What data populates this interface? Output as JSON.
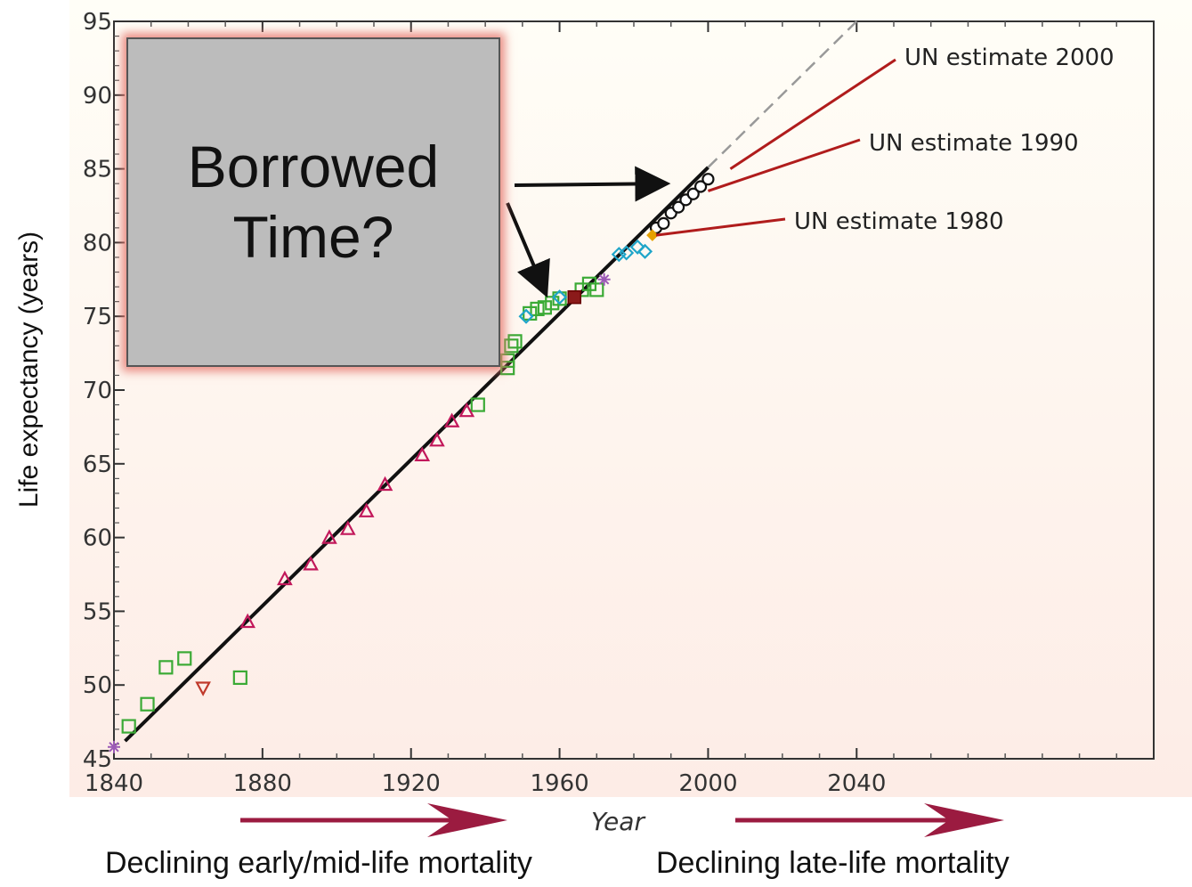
{
  "chart_data": {
    "type": "scatter",
    "xlabel": "Year",
    "ylabel": "Life expectancy (years)",
    "xlim": [
      1840,
      2120
    ],
    "ylim": [
      45,
      95
    ],
    "x_ticks": [
      1840,
      1880,
      1920,
      1960,
      2000,
      2040
    ],
    "x_tick_labels": [
      "1840",
      "1880",
      "1920",
      "1960",
      "2000",
      "2040"
    ],
    "y_ticks": [
      45,
      50,
      55,
      60,
      65,
      70,
      75,
      80,
      85,
      90,
      95
    ],
    "y_tick_labels": [
      "45",
      "50",
      "55",
      "60",
      "65",
      "70",
      "75",
      "80",
      "85",
      "90",
      "95"
    ],
    "trend_line": {
      "x": [
        1843,
        2000
      ],
      "y": [
        46.2,
        85.1
      ]
    },
    "trend_extension": {
      "x": [
        2000,
        2040
      ],
      "y": [
        85.1,
        95
      ]
    },
    "series": [
      {
        "marker": "square",
        "color": "#3aaa35",
        "points": [
          [
            1844,
            47.2
          ],
          [
            1849,
            48.7
          ],
          [
            1854,
            51.2
          ],
          [
            1859,
            51.8
          ],
          [
            1874,
            50.5
          ],
          [
            1938,
            69.0
          ],
          [
            1946,
            71.5
          ],
          [
            1946,
            72.0
          ],
          [
            1947,
            73.0
          ],
          [
            1948,
            73.3
          ],
          [
            1952,
            75.2
          ],
          [
            1954,
            75.5
          ],
          [
            1956,
            75.6
          ],
          [
            1958,
            75.9
          ],
          [
            1960,
            76.2
          ],
          [
            1966,
            76.8
          ],
          [
            1968,
            77.2
          ],
          [
            1970,
            76.8
          ]
        ]
      },
      {
        "marker": "triangle-down",
        "color": "#c0392b",
        "points": [
          [
            1864,
            49.8
          ]
        ]
      },
      {
        "marker": "triangle",
        "color": "#c2185b",
        "points": [
          [
            1876,
            54.3
          ],
          [
            1886,
            57.2
          ],
          [
            1893,
            58.2
          ],
          [
            1898,
            60.0
          ],
          [
            1903,
            60.6
          ],
          [
            1908,
            61.8
          ],
          [
            1913,
            63.6
          ],
          [
            1923,
            65.6
          ],
          [
            1927,
            66.6
          ],
          [
            1931,
            67.9
          ],
          [
            1935,
            68.6
          ]
        ]
      },
      {
        "marker": "diamond",
        "color": "#1fa5c9",
        "points": [
          [
            1951,
            75.0
          ],
          [
            1960,
            76.3
          ],
          [
            1976,
            79.2
          ],
          [
            1978,
            79.3
          ],
          [
            1981,
            79.7
          ],
          [
            1983,
            79.4
          ]
        ]
      },
      {
        "marker": "circle",
        "color": "#111111",
        "points": [
          [
            1986,
            81.0
          ],
          [
            1988,
            81.3
          ],
          [
            1990,
            82.0
          ],
          [
            1992,
            82.4
          ],
          [
            1994,
            82.9
          ],
          [
            1996,
            83.3
          ],
          [
            1998,
            83.8
          ],
          [
            2000,
            84.3
          ]
        ]
      },
      {
        "marker": "cross",
        "color": "#9b59b6",
        "points": [
          [
            1840,
            45.8
          ],
          [
            1972,
            77.5
          ]
        ]
      },
      {
        "marker": "square-filled",
        "color": "#8b1a1a",
        "points": [
          [
            1964,
            76.3
          ]
        ]
      },
      {
        "marker": "diamond-filled",
        "color": "#e6a100",
        "points": [
          [
            1985,
            80.5
          ]
        ]
      }
    ],
    "annotations": [
      {
        "text": "UN estimate 2000",
        "from": [
          2006,
          85.0
        ]
      },
      {
        "text": "UN estimate 1990",
        "from": [
          2000,
          83.5
        ]
      },
      {
        "text": "UN estimate 1980",
        "from": [
          1986,
          80.5
        ]
      }
    ]
  },
  "overlay": {
    "box_line1": "Borrowed",
    "box_line2": "Time?",
    "arrows": [
      {
        "to": [
          1988,
          84.0
        ]
      },
      {
        "to": [
          1956,
          76.7
        ]
      }
    ]
  },
  "bottom": {
    "left_label": "Declining early/mid-life mortality",
    "right_label": "Declining late-life mortality",
    "arrow_color": "#9b1b40"
  }
}
